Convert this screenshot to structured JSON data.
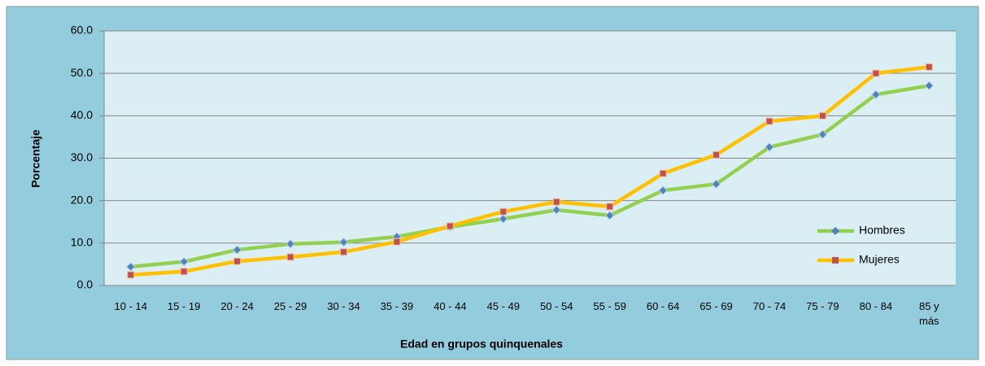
{
  "chart_data": {
    "type": "line",
    "x_label": "Edad en grupos quinquenales",
    "y_label": "Porcentaje",
    "categories": [
      "10 - 14",
      "15 - 19",
      "20 - 24",
      "25 - 29",
      "30 - 34",
      "35 - 39",
      "40 - 44",
      "45 - 49",
      "50 - 54",
      "55 - 59",
      "60 - 64",
      "65 - 69",
      "70 - 74",
      "75 - 79",
      "80 - 84",
      "85 y más"
    ],
    "series": [
      {
        "name": "Hombres",
        "color": "#92d050",
        "marker_color": "#4f81bd",
        "marker": "diamond",
        "values": [
          4.4,
          5.6,
          8.4,
          9.8,
          10.2,
          11.5,
          13.8,
          15.7,
          17.8,
          16.5,
          22.4,
          23.9,
          32.6,
          35.6,
          45.0,
          47.1
        ]
      },
      {
        "name": "Mujeres",
        "color": "#ffc000",
        "marker_color": "#c0504d",
        "marker": "square",
        "values": [
          2.5,
          3.3,
          5.7,
          6.7,
          7.9,
          10.3,
          14.0,
          17.4,
          19.7,
          18.6,
          26.4,
          30.8,
          38.7,
          40.0,
          50.0,
          51.5
        ]
      }
    ],
    "ylim": [
      0,
      60
    ],
    "yticks": [
      {
        "value": 0,
        "label": "0.0"
      },
      {
        "value": 10,
        "label": "10.0"
      },
      {
        "value": 20,
        "label": "20.0"
      },
      {
        "value": 30,
        "label": "30.0"
      },
      {
        "value": 40,
        "label": "40.0"
      },
      {
        "value": 50,
        "label": "50.0"
      },
      {
        "value": 60,
        "label": "60.0"
      }
    ],
    "grid": true,
    "legend": "right"
  }
}
